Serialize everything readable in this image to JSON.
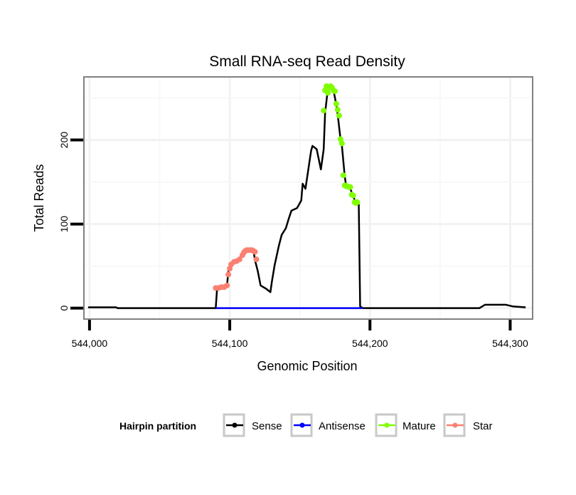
{
  "chart_data": {
    "type": "line",
    "title": "Small RNA-seq Read Density",
    "xlabel": "Genomic Position",
    "ylabel": "Total Reads",
    "xlim": [
      543996,
      544316
    ],
    "ylim": [
      -13,
      275
    ],
    "xticks": [
      544000,
      544100,
      544200,
      544300
    ],
    "xtick_labels": [
      "544,000",
      "544,100",
      "544,200",
      "544,300"
    ],
    "yticks": [
      0,
      100,
      200
    ],
    "ytick_labels": [
      "0",
      "100",
      "200"
    ],
    "grid": true,
    "legend": {
      "title": "Hairpin partition",
      "placement": "bottom",
      "entries": [
        "Sense",
        "Antisense",
        "Mature",
        "Star"
      ]
    },
    "colors": {
      "Sense": "#000000",
      "Antisense": "#0000ff",
      "Mature": "#7fff00",
      "Star": "#fa8072"
    },
    "series": [
      {
        "name": "Sense",
        "x": [
          543999,
          544019,
          544020,
          544090,
          544091,
          544098,
          544099,
          544101,
          544105,
          544107,
          544110,
          544113,
          544117,
          544118,
          544120,
          544122,
          544126,
          544129,
          544130,
          544132,
          544135,
          544137,
          544140,
          544142,
          544144,
          544148,
          544151,
          544152,
          544154,
          544158,
          544159,
          544162,
          544165,
          544167,
          544168,
          544170,
          544171,
          544173,
          544174,
          544176,
          544177,
          544179,
          544180,
          544182,
          544183,
          544186,
          544188,
          544190,
          544192,
          544193,
          544195,
          544278,
          544282,
          544297,
          544302,
          544311
        ],
        "y": [
          1,
          1,
          0,
          0,
          24,
          26,
          44,
          53,
          55,
          59,
          68,
          69,
          68,
          57,
          44,
          27,
          23,
          19,
          31,
          51,
          74,
          87,
          95,
          106,
          116,
          119,
          128,
          148,
          142,
          187,
          193,
          189,
          165,
          189,
          232,
          261,
          264,
          261,
          259,
          242,
          230,
          201,
          193,
          157,
          145,
          142,
          133,
          125,
          125,
          2,
          0,
          0,
          4,
          4,
          2,
          1
        ]
      },
      {
        "name": "Antisense",
        "x": [
          544090,
          544195
        ],
        "y": [
          0,
          0
        ]
      },
      {
        "name": "Mature",
        "x": [
          544167,
          544168,
          544169,
          544170,
          544171,
          544172,
          544173,
          544174,
          544175,
          544176,
          544177,
          544178,
          544179,
          544180,
          544181,
          544182,
          544183,
          544184,
          544185,
          544186,
          544187,
          544188,
          544189,
          544190,
          544191
        ],
        "y": [
          235,
          259,
          264,
          256,
          262,
          264,
          262,
          259,
          258,
          243,
          236,
          229,
          201,
          196,
          158,
          146,
          145,
          145,
          144,
          144,
          135,
          134,
          126,
          125,
          126
        ]
      },
      {
        "name": "Star",
        "x": [
          544090,
          544092,
          544094,
          544096,
          544098,
          544099,
          544100,
          544101,
          544103,
          544105,
          544107,
          544109,
          544110,
          544111,
          544112,
          544113,
          544114,
          544115,
          544116,
          544117,
          544118,
          544119
        ],
        "y": [
          24,
          24,
          25,
          25,
          27,
          40,
          47,
          52,
          55,
          56,
          58,
          63,
          66,
          68,
          69,
          69,
          69,
          69,
          69,
          68,
          67,
          58
        ]
      }
    ]
  }
}
